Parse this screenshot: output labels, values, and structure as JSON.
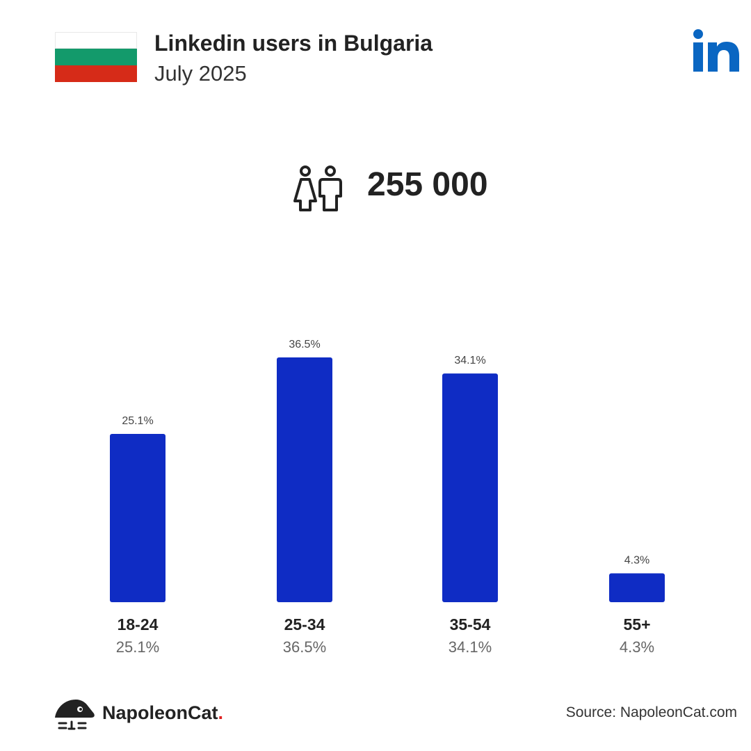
{
  "header": {
    "title": "Linkedin users in Bulgaria",
    "subtitle": "July 2025"
  },
  "total_users": "255 000",
  "colors": {
    "bar": "#0f2cc4",
    "linkedin": "#0a66c2",
    "flag": [
      "#ffffff",
      "#139a6b",
      "#d62b18"
    ]
  },
  "icons": {
    "logo": "linkedin-icon",
    "users": "users-icon",
    "brand": "napoleoncat-icon"
  },
  "chart_data": {
    "type": "bar",
    "title": "Linkedin users in Bulgaria",
    "categories": [
      "18-24",
      "25-34",
      "35-54",
      "55+"
    ],
    "values": [
      25.1,
      36.5,
      34.1,
      4.3
    ],
    "value_labels": [
      "25.1%",
      "36.5%",
      "34.1%",
      "4.3%"
    ],
    "unit": "%",
    "ylim": [
      0,
      36.5
    ],
    "grid": false,
    "legend": "none"
  },
  "footer": {
    "brand_name": "NapoleonCat",
    "brand_dot": ".",
    "source": "Source: NapoleonCat.com"
  }
}
